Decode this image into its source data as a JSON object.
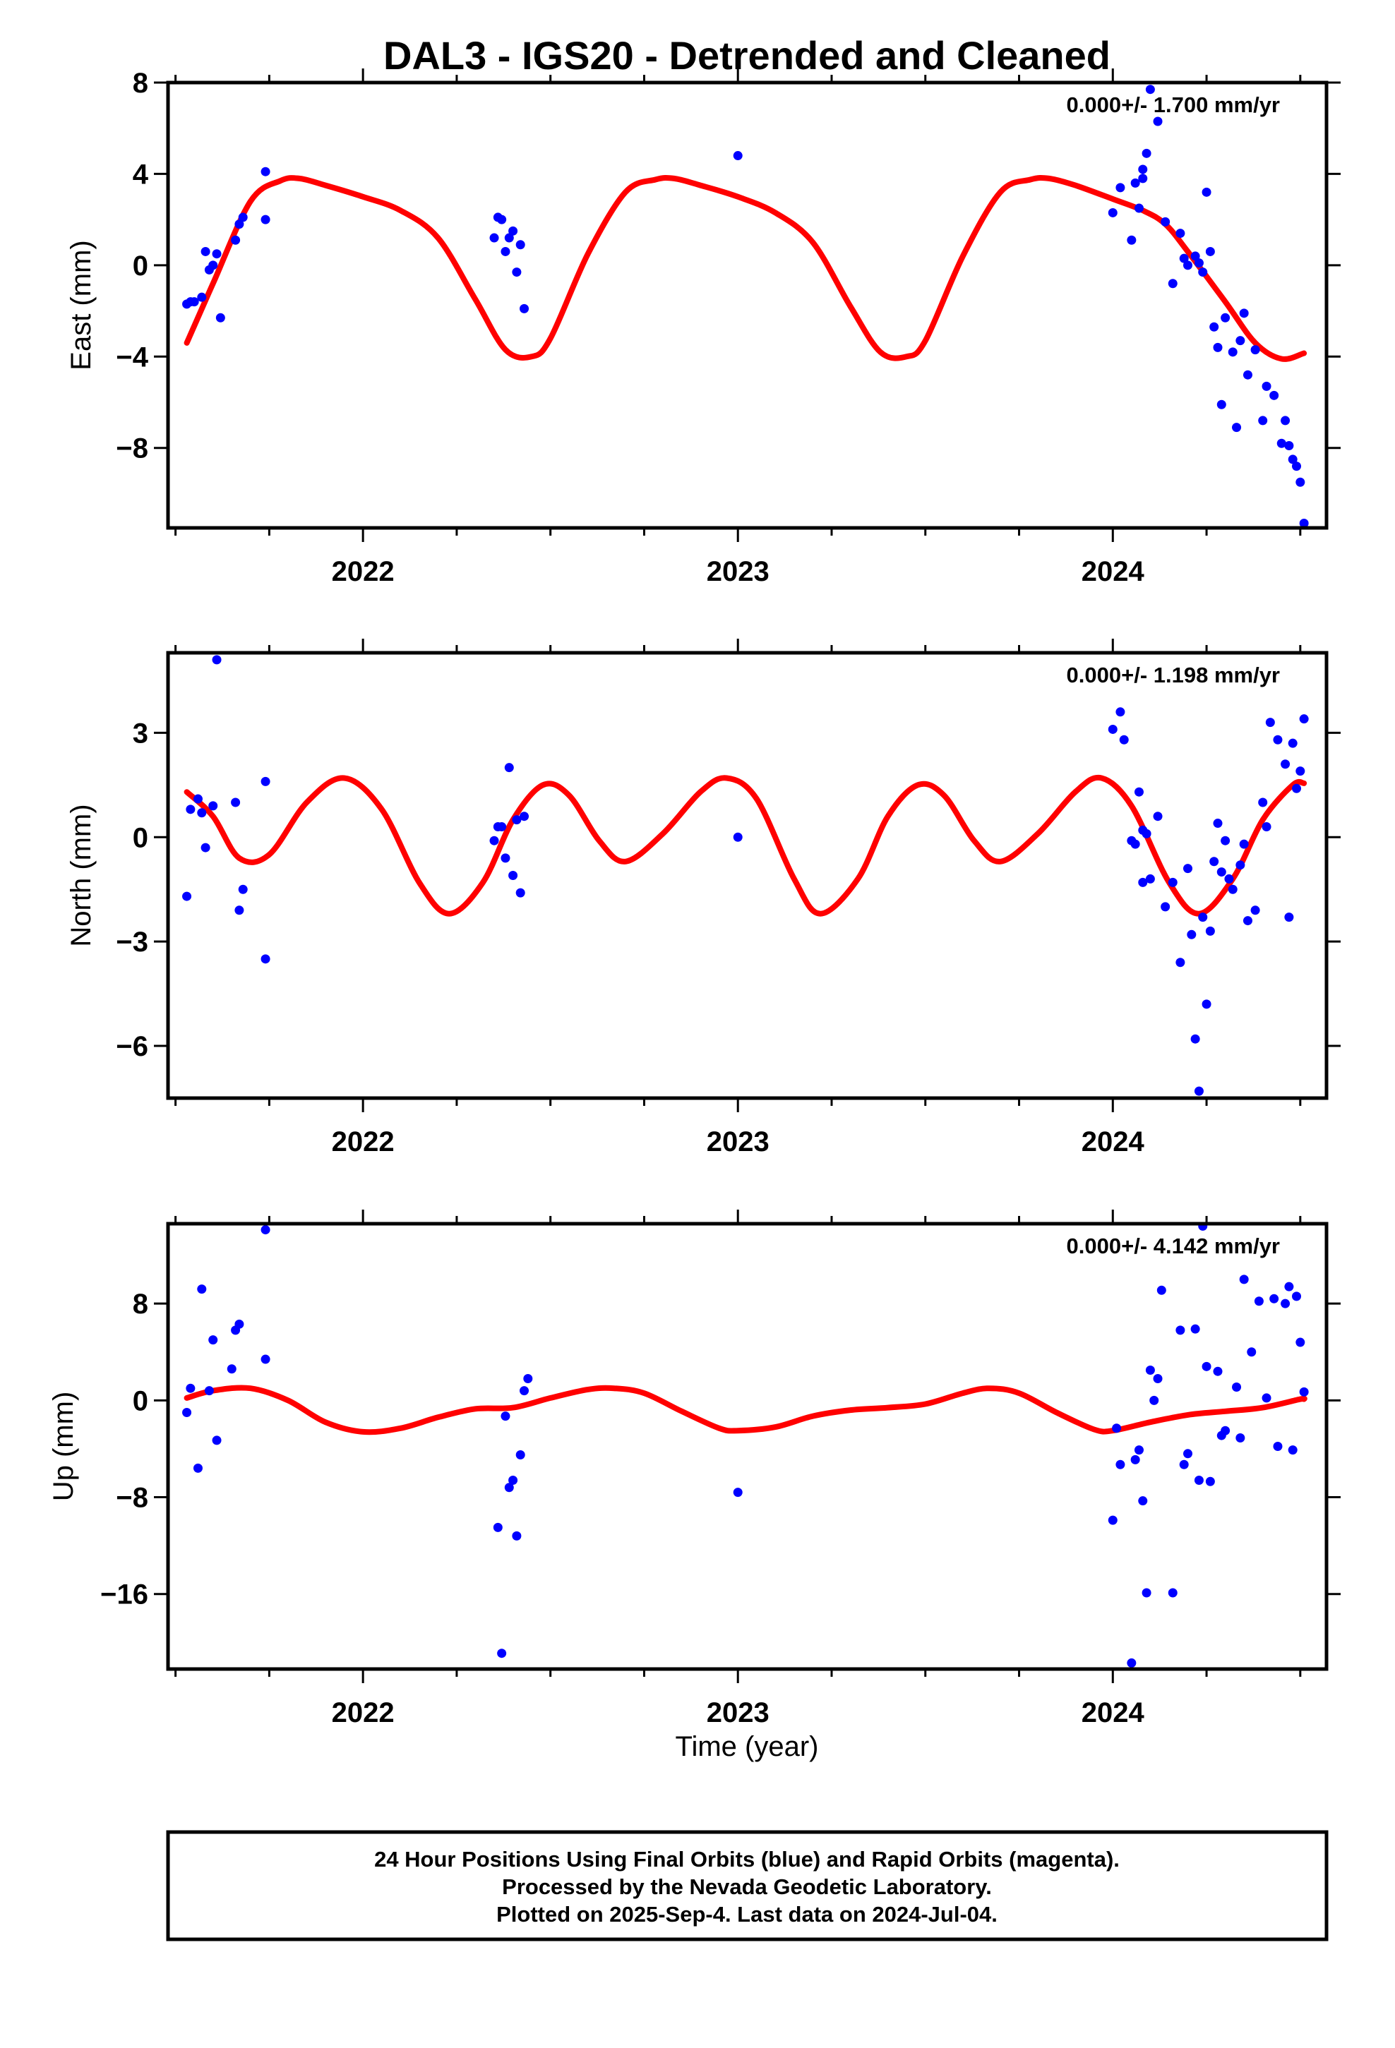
{
  "title": "DAL3 - IGS20 - Detrended and Cleaned",
  "xlabel": "Time (year)",
  "footer": {
    "line1": "24 Hour Positions Using Final Orbits (blue) and Rapid Orbits (magenta).",
    "line2": "Processed by the Nevada Geodetic Laboratory.",
    "line3": "Plotted on 2025-Sep-4. Last data on 2024-Jul-04."
  },
  "colors": {
    "points": "#0000ff",
    "model": "#ff0000",
    "frame": "#000000"
  },
  "chart_data": [
    {
      "type": "scatter",
      "ylabel": "East (mm)",
      "rate": "0.000+/- 1.700 mm/yr",
      "xlim": [
        2021.48,
        2024.57
      ],
      "ylim": [
        -11.5,
        8
      ],
      "yticks": [
        8,
        4,
        0,
        -4,
        -8
      ],
      "ytick_labels": [
        "8",
        "4",
        "0",
        "−4",
        "−8"
      ],
      "xticks": [
        2022,
        2023,
        2024
      ],
      "xtick_labels": [
        "2022",
        "2023",
        "2024"
      ],
      "xminor_step": 0.25,
      "model": {
        "x": [
          2021.53,
          2021.6,
          2021.7,
          2021.78,
          2021.83,
          2021.9,
          2022.0,
          2022.1,
          2022.2,
          2022.3,
          2022.38,
          2022.45,
          2022.5,
          2022.6,
          2022.7,
          2022.78,
          2022.83,
          2022.9,
          2023.0,
          2023.1,
          2023.2,
          2023.3,
          2023.38,
          2023.45,
          2023.5,
          2023.6,
          2023.7,
          2023.78,
          2023.83,
          2023.9,
          2024.0,
          2024.08,
          2024.14,
          2024.2,
          2024.3,
          2024.38,
          2024.45,
          2024.51
        ],
        "y": [
          -3.4,
          -0.8,
          2.8,
          3.7,
          3.8,
          3.5,
          3.0,
          2.4,
          1.2,
          -1.5,
          -3.7,
          -4.0,
          -3.2,
          0.5,
          3.2,
          3.75,
          3.8,
          3.5,
          3.0,
          2.3,
          1.0,
          -1.8,
          -3.8,
          -4.0,
          -3.3,
          0.4,
          3.2,
          3.75,
          3.8,
          3.5,
          2.9,
          2.4,
          1.8,
          0.6,
          -1.6,
          -3.4,
          -4.1,
          -3.85
        ]
      },
      "points": {
        "x": [
          2021.53,
          2021.54,
          2021.55,
          2021.57,
          2021.58,
          2021.59,
          2021.6,
          2021.61,
          2021.62,
          2021.66,
          2021.67,
          2021.68,
          2021.74,
          2021.74,
          2022.35,
          2022.36,
          2022.37,
          2022.38,
          2022.39,
          2022.4,
          2022.41,
          2022.42,
          2022.43,
          2023.0,
          2024.0,
          2024.02,
          2024.05,
          2024.06,
          2024.07,
          2024.08,
          2024.08,
          2024.09,
          2024.1,
          2024.12,
          2024.14,
          2024.16,
          2024.18,
          2024.19,
          2024.2,
          2024.22,
          2024.23,
          2024.24,
          2024.25,
          2024.26,
          2024.27,
          2024.28,
          2024.29,
          2024.3,
          2024.32,
          2024.33,
          2024.34,
          2024.35,
          2024.36,
          2024.38,
          2024.4,
          2024.41,
          2024.43,
          2024.45,
          2024.46,
          2024.47,
          2024.48,
          2024.49,
          2024.5,
          2024.51
        ],
        "y": [
          -1.7,
          -1.6,
          -1.6,
          -1.4,
          0.6,
          -0.2,
          0.0,
          0.5,
          -2.3,
          1.1,
          1.8,
          2.1,
          2.0,
          4.1,
          1.2,
          2.1,
          2.0,
          0.6,
          1.2,
          1.5,
          -0.3,
          0.9,
          -1.9,
          4.8,
          2.3,
          3.4,
          1.1,
          3.6,
          2.5,
          3.8,
          4.2,
          4.9,
          7.7,
          6.3,
          1.9,
          -0.8,
          1.4,
          0.3,
          0.0,
          0.4,
          0.1,
          -0.3,
          3.2,
          0.6,
          -2.7,
          -3.6,
          -6.1,
          -2.3,
          -3.8,
          -7.1,
          -3.3,
          -2.1,
          -4.8,
          -3.7,
          -6.8,
          -5.3,
          -5.7,
          -7.8,
          -6.8,
          -7.9,
          -8.5,
          -8.8,
          -9.5,
          -11.3
        ]
      }
    },
    {
      "type": "scatter",
      "ylabel": "North (mm)",
      "rate": "0.000+/- 1.198 mm/yr",
      "xlim": [
        2021.48,
        2024.57
      ],
      "ylim": [
        -7.5,
        5.3
      ],
      "yticks": [
        3,
        0,
        -3,
        -6
      ],
      "ytick_labels": [
        "3",
        "0",
        "−3",
        "−6"
      ],
      "xticks": [
        2022,
        2023,
        2024
      ],
      "xtick_labels": [
        "2022",
        "2023",
        "2024"
      ],
      "xminor_step": 0.25,
      "model": {
        "x": [
          2021.53,
          2021.6,
          2021.67,
          2021.75,
          2021.85,
          2021.95,
          2022.05,
          2022.15,
          2022.23,
          2022.32,
          2022.4,
          2022.48,
          2022.55,
          2022.63,
          2022.7,
          2022.8,
          2022.9,
          2022.97,
          2023.05,
          2023.15,
          2023.22,
          2023.32,
          2023.4,
          2023.48,
          2023.55,
          2023.63,
          2023.7,
          2023.8,
          2023.9,
          2023.97,
          2024.05,
          2024.15,
          2024.23,
          2024.32,
          2024.4,
          2024.48,
          2024.51
        ],
        "y": [
          1.3,
          0.6,
          -0.6,
          -0.5,
          1.0,
          1.7,
          0.8,
          -1.3,
          -2.2,
          -1.3,
          0.5,
          1.5,
          1.2,
          -0.1,
          -0.7,
          0.1,
          1.3,
          1.7,
          1.1,
          -1.2,
          -2.2,
          -1.2,
          0.6,
          1.5,
          1.2,
          -0.1,
          -0.7,
          0.1,
          1.3,
          1.7,
          0.9,
          -1.3,
          -2.2,
          -1.2,
          0.5,
          1.5,
          1.55
        ]
      },
      "points": {
        "x": [
          2021.53,
          2021.54,
          2021.56,
          2021.57,
          2021.58,
          2021.6,
          2021.61,
          2021.66,
          2021.67,
          2021.68,
          2021.74,
          2021.74,
          2022.35,
          2022.36,
          2022.37,
          2022.38,
          2022.39,
          2022.4,
          2022.41,
          2022.42,
          2022.43,
          2023.0,
          2024.0,
          2024.02,
          2024.03,
          2024.05,
          2024.06,
          2024.07,
          2024.08,
          2024.08,
          2024.09,
          2024.1,
          2024.12,
          2024.14,
          2024.16,
          2024.18,
          2024.2,
          2024.21,
          2024.22,
          2024.23,
          2024.24,
          2024.25,
          2024.26,
          2024.27,
          2024.28,
          2024.29,
          2024.3,
          2024.31,
          2024.32,
          2024.34,
          2024.35,
          2024.36,
          2024.38,
          2024.4,
          2024.41,
          2024.42,
          2024.44,
          2024.46,
          2024.47,
          2024.48,
          2024.49,
          2024.5,
          2024.51
        ],
        "y": [
          -1.7,
          0.8,
          1.1,
          0.7,
          -0.3,
          0.9,
          5.1,
          1.0,
          -2.1,
          -1.5,
          1.6,
          -3.5,
          -0.1,
          0.3,
          0.3,
          -0.6,
          2.0,
          -1.1,
          0.5,
          -1.6,
          0.6,
          0.0,
          3.1,
          3.6,
          2.8,
          -0.1,
          -0.2,
          1.3,
          0.2,
          -1.3,
          0.1,
          -1.2,
          0.6,
          -2.0,
          -1.3,
          -3.6,
          -0.9,
          -2.8,
          -5.8,
          -7.3,
          -2.3,
          -4.8,
          -2.7,
          -0.7,
          0.4,
          -1.0,
          -0.1,
          -1.2,
          -1.5,
          -0.8,
          -0.2,
          -2.4,
          -2.1,
          1.0,
          0.3,
          3.3,
          2.8,
          2.1,
          -2.3,
          2.7,
          1.4,
          1.9,
          3.4
        ]
      }
    },
    {
      "type": "scatter",
      "ylabel": "Up (mm)",
      "rate": "0.000+/- 4.142 mm/yr",
      "xlim": [
        2021.48,
        2024.57
      ],
      "ylim": [
        -22.2,
        14.6
      ],
      "yticks": [
        8,
        0,
        -8,
        -16
      ],
      "ytick_labels": [
        "8",
        "0",
        "−8",
        "−16"
      ],
      "xticks": [
        2022,
        2023,
        2024
      ],
      "xtick_labels": [
        "2022",
        "2023",
        "2024"
      ],
      "xminor_step": 0.25,
      "model": {
        "x": [
          2021.53,
          2021.6,
          2021.7,
          2021.8,
          2021.9,
          2022.0,
          2022.1,
          2022.2,
          2022.3,
          2022.4,
          2022.5,
          2022.6,
          2022.67,
          2022.75,
          2022.85,
          2022.95,
          2023.0,
          2023.1,
          2023.2,
          2023.3,
          2023.4,
          2023.5,
          2023.6,
          2023.67,
          2023.75,
          2023.85,
          2023.95,
          2024.0,
          2024.1,
          2024.2,
          2024.3,
          2024.4,
          2024.5,
          2024.51
        ],
        "y": [
          0.2,
          0.8,
          1.0,
          0.0,
          -1.8,
          -2.6,
          -2.3,
          -1.4,
          -0.7,
          -0.6,
          0.2,
          0.9,
          1.0,
          0.6,
          -0.9,
          -2.3,
          -2.5,
          -2.2,
          -1.3,
          -0.8,
          -0.6,
          -0.3,
          0.6,
          1.0,
          0.6,
          -1.0,
          -2.4,
          -2.5,
          -1.8,
          -1.2,
          -0.9,
          -0.6,
          0.1,
          0.1
        ]
      },
      "points": {
        "x": [
          2021.53,
          2021.54,
          2021.56,
          2021.57,
          2021.59,
          2021.6,
          2021.61,
          2021.65,
          2021.66,
          2021.67,
          2021.74,
          2021.74,
          2022.36,
          2022.37,
          2022.38,
          2022.39,
          2022.4,
          2022.41,
          2022.42,
          2022.43,
          2022.44,
          2023.0,
          2024.0,
          2024.01,
          2024.02,
          2024.05,
          2024.06,
          2024.07,
          2024.08,
          2024.09,
          2024.1,
          2024.11,
          2024.12,
          2024.13,
          2024.16,
          2024.18,
          2024.19,
          2024.2,
          2024.22,
          2024.23,
          2024.24,
          2024.25,
          2024.26,
          2024.28,
          2024.29,
          2024.3,
          2024.33,
          2024.34,
          2024.35,
          2024.37,
          2024.39,
          2024.41,
          2024.43,
          2024.44,
          2024.46,
          2024.47,
          2024.48,
          2024.49,
          2024.5,
          2024.51
        ],
        "y": [
          -1.0,
          1.0,
          -5.6,
          9.2,
          0.8,
          5.0,
          -3.3,
          2.6,
          5.8,
          6.3,
          3.4,
          14.1,
          -10.5,
          -20.9,
          -1.3,
          -7.2,
          -6.6,
          -11.2,
          -4.5,
          0.8,
          1.8,
          -7.6,
          -9.9,
          -2.3,
          -5.3,
          -21.7,
          -4.9,
          -4.1,
          -8.3,
          -15.9,
          2.5,
          0.0,
          1.8,
          9.1,
          -15.9,
          5.8,
          -5.3,
          -4.4,
          5.9,
          -6.6,
          14.4,
          2.8,
          -6.7,
          2.4,
          -2.9,
          -2.5,
          1.1,
          -3.1,
          10.0,
          4.0,
          8.2,
          0.2,
          8.4,
          -3.8,
          8.0,
          9.4,
          -4.1,
          8.6,
          4.8,
          0.7
        ]
      }
    }
  ]
}
